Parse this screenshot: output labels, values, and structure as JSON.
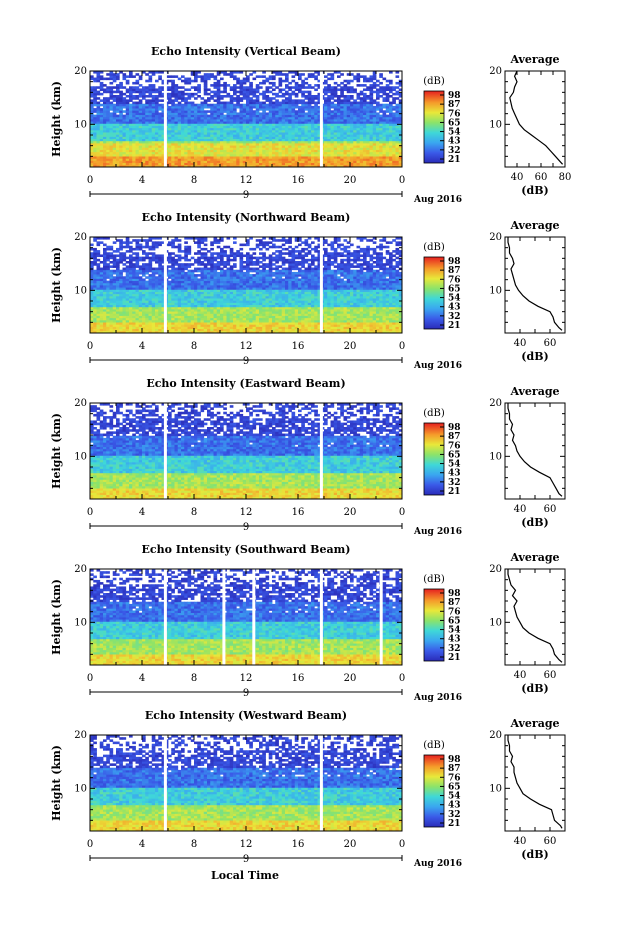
{
  "chart_data": {
    "type": "heatmap",
    "date_label": "Aug 2016",
    "day_label": "9",
    "x_label": "Local Time",
    "x_ticks": [
      "0",
      "4",
      "8",
      "12",
      "16",
      "20",
      "0"
    ],
    "xlim": [
      0,
      24
    ],
    "y_label": "Height (km)",
    "y_ticks": [
      "20",
      "10"
    ],
    "ylim": [
      2,
      20
    ],
    "colorbar": {
      "unit": "(dB)",
      "ticks": [
        "98",
        "87",
        "76",
        "65",
        "54",
        "43",
        "32",
        "21"
      ],
      "range": [
        21,
        98
      ]
    },
    "profile_title": "Average",
    "profile_xlabel": "(dB)",
    "panels": [
      {
        "title": "Echo Intensity (Vertical Beam)",
        "colorbar_ticks": [
          "98",
          "87",
          "76",
          "65",
          "54",
          "43",
          "32",
          "21"
        ],
        "profile_x_ticks": [
          "40",
          "60",
          "80"
        ],
        "profile_xlim": [
          30,
          80
        ],
        "gaps_hours": [
          5.8,
          17.8
        ],
        "average_profile": [
          [
            78,
            2.5
          ],
          [
            76,
            3
          ],
          [
            72,
            4
          ],
          [
            68,
            5
          ],
          [
            64,
            6
          ],
          [
            58,
            7
          ],
          [
            52,
            8
          ],
          [
            46,
            9
          ],
          [
            42,
            10
          ],
          [
            40,
            11
          ],
          [
            38,
            12
          ],
          [
            36,
            13
          ],
          [
            35,
            14
          ],
          [
            34,
            15
          ],
          [
            37,
            16
          ],
          [
            38,
            17
          ],
          [
            40,
            18
          ],
          [
            38,
            19
          ],
          [
            40,
            20
          ]
        ]
      },
      {
        "title": "Echo Intensity (Northward Beam)",
        "colorbar_ticks": [
          "98",
          "87",
          "76",
          "65",
          "54",
          "43",
          "32",
          "21"
        ],
        "profile_x_ticks": [
          "40",
          "60"
        ],
        "profile_xlim": [
          30,
          70
        ],
        "gaps_hours": [
          5.8,
          17.8
        ],
        "average_profile": [
          [
            68,
            2.5
          ],
          [
            66,
            3
          ],
          [
            63,
            4
          ],
          [
            62,
            5
          ],
          [
            60,
            6
          ],
          [
            52,
            7
          ],
          [
            46,
            8
          ],
          [
            42,
            9
          ],
          [
            39,
            10
          ],
          [
            37,
            11
          ],
          [
            36,
            12
          ],
          [
            35,
            13
          ],
          [
            34,
            14
          ],
          [
            36,
            15
          ],
          [
            35,
            16
          ],
          [
            33,
            17
          ],
          [
            33,
            18
          ],
          [
            32,
            19
          ],
          [
            32,
            20
          ]
        ]
      },
      {
        "title": "Echo Intensity (Eastward Beam)",
        "colorbar_ticks": [
          "98",
          "87",
          "76",
          "65",
          "54",
          "43",
          "32",
          "21"
        ],
        "profile_x_ticks": [
          "40",
          "60"
        ],
        "profile_xlim": [
          30,
          70
        ],
        "gaps_hours": [
          5.8,
          17.8
        ],
        "average_profile": [
          [
            68,
            2.5
          ],
          [
            66,
            3
          ],
          [
            64,
            4
          ],
          [
            62,
            5
          ],
          [
            60,
            6
          ],
          [
            53,
            7
          ],
          [
            47,
            8
          ],
          [
            43,
            9
          ],
          [
            40,
            10
          ],
          [
            38,
            11
          ],
          [
            37,
            12
          ],
          [
            35,
            13
          ],
          [
            36,
            14
          ],
          [
            34,
            15
          ],
          [
            35,
            16
          ],
          [
            33,
            17
          ],
          [
            33,
            18
          ],
          [
            32,
            19
          ],
          [
            32,
            20
          ]
        ]
      },
      {
        "title": "Echo Intensity (Southward Beam)",
        "colorbar_ticks": [
          "98",
          "87",
          "76",
          "65",
          "54",
          "43",
          "32",
          "21"
        ],
        "profile_x_ticks": [
          "40",
          "60"
        ],
        "profile_xlim": [
          30,
          70
        ],
        "gaps_hours": [
          5.8,
          10.3,
          12.6,
          17.8,
          22.4
        ],
        "average_profile": [
          [
            68,
            2.5
          ],
          [
            66,
            3
          ],
          [
            63,
            4
          ],
          [
            62,
            5
          ],
          [
            60,
            6
          ],
          [
            52,
            7
          ],
          [
            46,
            8
          ],
          [
            42,
            9
          ],
          [
            40,
            10
          ],
          [
            38,
            11
          ],
          [
            37,
            12
          ],
          [
            36,
            13
          ],
          [
            38,
            14
          ],
          [
            35,
            15
          ],
          [
            37,
            16
          ],
          [
            34,
            17
          ],
          [
            33,
            18
          ],
          [
            32,
            19
          ],
          [
            32,
            20
          ]
        ]
      },
      {
        "title": "Echo Intensity (Westward Beam)",
        "colorbar_ticks": [
          "98",
          "87",
          "76",
          "65",
          "54",
          "43",
          "32",
          "21"
        ],
        "profile_x_ticks": [
          "40",
          "60"
        ],
        "profile_xlim": [
          30,
          70
        ],
        "gaps_hours": [
          5.8,
          17.8
        ],
        "average_profile": [
          [
            68,
            2.5
          ],
          [
            67,
            3
          ],
          [
            63,
            4
          ],
          [
            62,
            5
          ],
          [
            61,
            6
          ],
          [
            53,
            7
          ],
          [
            47,
            8
          ],
          [
            42,
            9
          ],
          [
            40,
            10
          ],
          [
            38,
            11
          ],
          [
            37,
            12
          ],
          [
            36,
            13
          ],
          [
            36,
            14
          ],
          [
            34,
            15
          ],
          [
            35,
            16
          ],
          [
            33,
            17
          ],
          [
            33,
            18
          ],
          [
            32,
            19
          ],
          [
            32,
            20
          ]
        ]
      }
    ]
  }
}
